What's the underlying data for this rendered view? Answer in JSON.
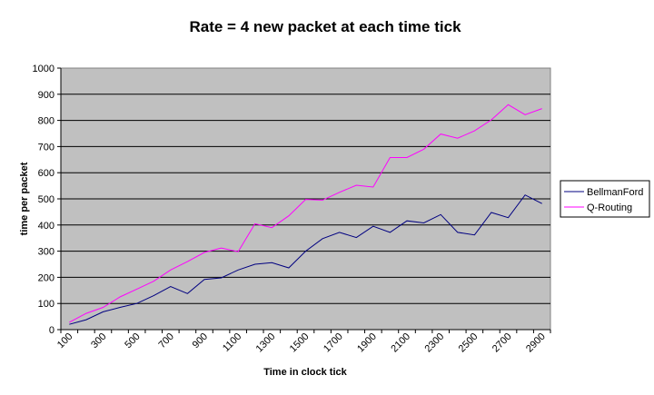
{
  "chart_data": {
    "type": "line",
    "title": "Rate = 4 new packet at each time tick",
    "xlabel": "Time in clock tick",
    "ylabel": "time per packet",
    "x": [
      100,
      200,
      300,
      400,
      500,
      600,
      700,
      800,
      900,
      1000,
      1100,
      1200,
      1300,
      1400,
      1500,
      1600,
      1700,
      1800,
      1900,
      2000,
      2100,
      2200,
      2300,
      2400,
      2500,
      2600,
      2700,
      2800,
      2900
    ],
    "x_tick_labels": [
      "100",
      "300",
      "500",
      "700",
      "900",
      "1100",
      "1300",
      "1500",
      "1700",
      "1900",
      "2100",
      "2300",
      "2500",
      "2700",
      "2900"
    ],
    "y_ticks": [
      "0",
      "100",
      "200",
      "300",
      "400",
      "500",
      "600",
      "700",
      "800",
      "900",
      "1000"
    ],
    "ylim": [
      0,
      1000
    ],
    "grid": "horizontal",
    "legend_position": "right",
    "series": [
      {
        "name": "BellmanFord",
        "color": "#000080",
        "values": [
          20,
          38,
          68,
          85,
          100,
          130,
          165,
          138,
          192,
          198,
          228,
          250,
          256,
          236,
          300,
          348,
          372,
          352,
          395,
          372,
          416,
          408,
          440,
          372,
          362,
          448,
          428,
          515,
          482
        ]
      },
      {
        "name": "Q-Routing",
        "color": "#ff00ff",
        "values": [
          28,
          62,
          85,
          125,
          155,
          185,
          228,
          260,
          295,
          312,
          298,
          405,
          390,
          435,
          498,
          495,
          525,
          552,
          545,
          658,
          658,
          690,
          748,
          732,
          760,
          802,
          860,
          822,
          845
        ]
      }
    ]
  }
}
